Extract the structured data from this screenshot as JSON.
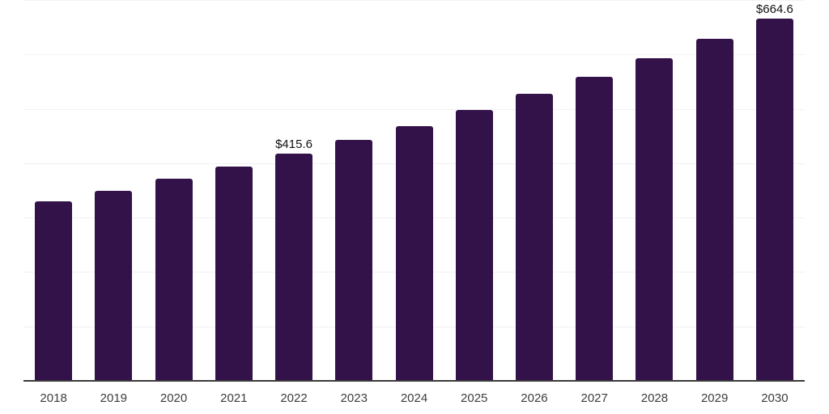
{
  "chart": {
    "background_color": "#ffffff",
    "bar_color": "#331249",
    "grid_color": "#f2f1f3",
    "axis_color": "#3a3a3a",
    "data_label_color": "#111111",
    "tick_label_color": "#3c3c3c"
  },
  "chart_data": {
    "type": "bar",
    "title": "",
    "xlabel": "",
    "ylabel": "",
    "categories": [
      "2018",
      "2019",
      "2020",
      "2021",
      "2022",
      "2023",
      "2024",
      "2025",
      "2026",
      "2027",
      "2028",
      "2029",
      "2030"
    ],
    "values": [
      328.5,
      348.5,
      369.6,
      391.9,
      415.6,
      440.8,
      467.4,
      495.7,
      525.6,
      557.4,
      591.1,
      626.9,
      664.6
    ],
    "data_labels": {
      "2022": "$415.6",
      "2030": "$664.6"
    },
    "ylim": [
      0,
      700
    ],
    "gridline_step": 100,
    "grid": "horizontal",
    "legend_position": "none",
    "y_axis_tick_labels_visible": false
  }
}
